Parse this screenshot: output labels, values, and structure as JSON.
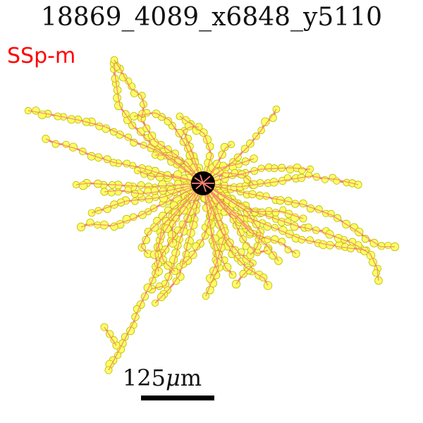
{
  "title": "18869_4089_x6848_y5110",
  "region_label": "SSp-m",
  "scale_bar": {
    "number": "125",
    "unit_prefix": "μ",
    "unit_suffix": "m"
  },
  "colors": {
    "title": "#111111",
    "region_label": "#ff0000",
    "branch": "#fa8072",
    "node_fill": "#ffff66",
    "node_stroke": "#b8b800",
    "soma": "#000000",
    "scale_bar": "#000000"
  }
}
